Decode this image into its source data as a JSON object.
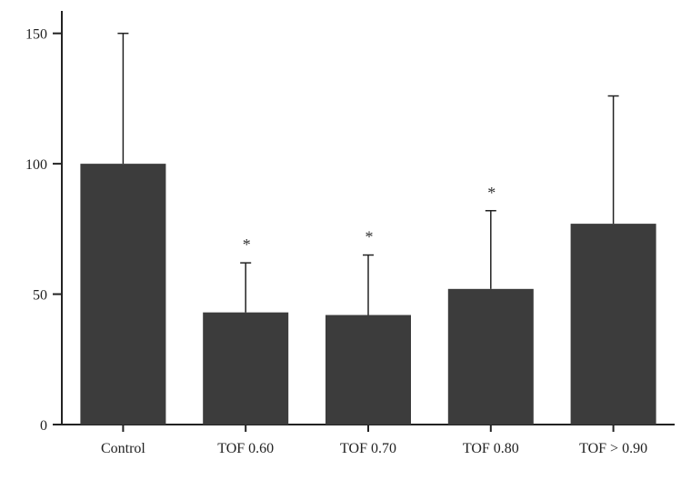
{
  "chart_data": {
    "type": "bar",
    "title": "",
    "xlabel": "",
    "ylabel": "",
    "ylim": [
      0,
      160
    ],
    "yticks": [
      "0",
      "50",
      "100",
      "150"
    ],
    "categories": [
      "Control",
      "TOF 0.60",
      "TOF 0.70",
      "TOF 0.80",
      "TOF > 0.90"
    ],
    "values": [
      100,
      43,
      42,
      52,
      77
    ],
    "error_upper": [
      150,
      62,
      65,
      82,
      126
    ],
    "significance": [
      "",
      "*",
      "*",
      "*",
      ""
    ],
    "grid": false,
    "legend": "none",
    "colors": {
      "bar": "#3c3c3c",
      "axis": "#222222",
      "background": "#ffffff"
    }
  }
}
